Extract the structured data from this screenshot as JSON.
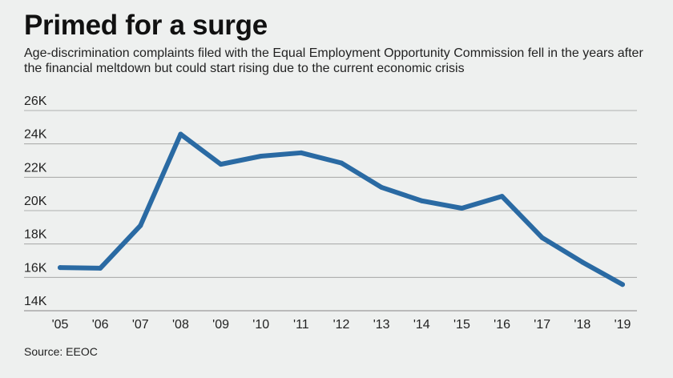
{
  "header": {
    "title": "Primed for a surge",
    "subtitle": "Age-discrimination complaints filed with the Equal Employment Opportunity Commission fell in the years after the financial meltdown but could start rising due to the current economic crisis"
  },
  "footer": {
    "source": "Source: EEOC"
  },
  "colors": {
    "line": "#2a6aa3",
    "grid": "#9a9a9a",
    "background": "#eef0ef"
  },
  "chart_data": {
    "type": "line",
    "title": "Primed for a surge",
    "xlabel": "",
    "ylabel": "",
    "categories": [
      "'05",
      "'06",
      "'07",
      "'08",
      "'09",
      "'10",
      "'11",
      "'12",
      "'13",
      "'14",
      "'15",
      "'16",
      "'17",
      "'18",
      "'19"
    ],
    "series": [
      {
        "name": "Age-discrimination complaints",
        "values": [
          16585,
          16548,
          19103,
          24582,
          22778,
          23264,
          23465,
          22857,
          21396,
          20588,
          20144,
          20857,
          18376,
          16911,
          15573
        ]
      }
    ],
    "ylim": [
      14000,
      26000
    ],
    "yticks": [
      14000,
      16000,
      18000,
      20000,
      22000,
      24000,
      26000
    ],
    "ytick_labels": [
      "14K",
      "16K",
      "18K",
      "20K",
      "22K",
      "24K",
      "26K"
    ],
    "grid": true
  }
}
